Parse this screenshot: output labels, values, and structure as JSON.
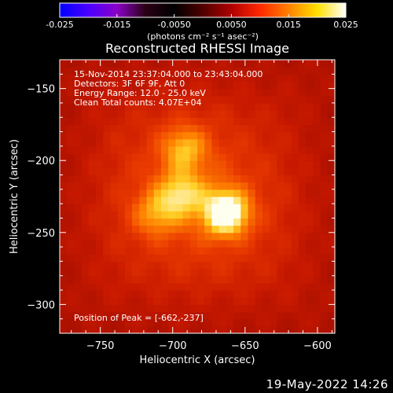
{
  "chart_data": {
    "type": "heatmap",
    "title": "Reconstructed RHESSI Image",
    "xlabel": "Heliocentric X (arcsec)",
    "ylabel": "Heliocentric Y (arcsec)",
    "xlim": [
      -778,
      -588
    ],
    "ylim": [
      -320,
      -130
    ],
    "xticks": [
      -750,
      -700,
      -650,
      -600
    ],
    "yticks": [
      -150,
      -200,
      -250,
      -300
    ],
    "colorbar": {
      "range": [
        -0.025,
        0.025
      ],
      "ticks": [
        "-0.025",
        "-0.015",
        "-0.0050",
        "0.0050",
        "0.015",
        "0.025"
      ],
      "unit_label": "(photons cm⁻² s⁻¹ asec⁻²)",
      "colormap": [
        "#0000ff",
        "#4a00ff",
        "#8a00c8",
        "#2a0014",
        "#000000",
        "#500000",
        "#b00000",
        "#ff2800",
        "#ff8000",
        "#ffe000",
        "#ffffff"
      ]
    },
    "annotations": [
      "15-Nov-2014 23:37:04.000 to 23:43:04.000",
      "Detectors: 3F 6F 9F, Att 0",
      "Energy Range: 12.0 - 25.0 keV",
      "Clean    Total counts: 4.07E+04"
    ],
    "peak_label": "Position of Peak = [-662,-237]",
    "peak_position": [
      -662,
      -237
    ],
    "sources": [
      {
        "x": -663,
        "y": -236,
        "amplitude": 1.0
      },
      {
        "x": -692,
        "y": -191,
        "amplitude": 0.52
      },
      {
        "x": -694,
        "y": -223,
        "amplitude": 0.55
      },
      {
        "x": -712,
        "y": -237,
        "amplitude": 0.42
      }
    ]
  },
  "footer": {
    "date_stamp": "19-May-2022 14:26"
  }
}
